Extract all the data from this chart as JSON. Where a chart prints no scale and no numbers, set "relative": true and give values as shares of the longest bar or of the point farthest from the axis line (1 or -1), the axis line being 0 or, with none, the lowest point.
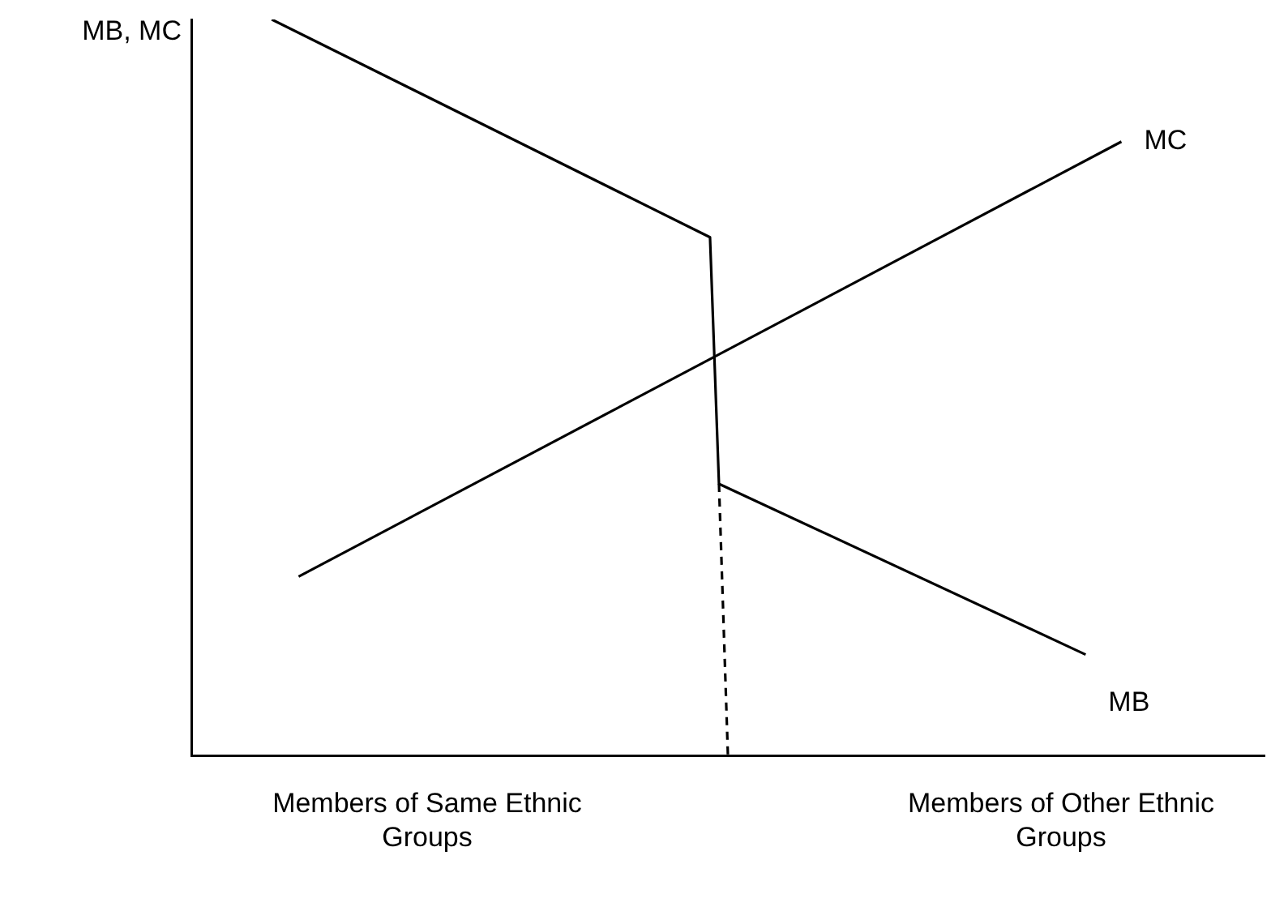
{
  "chart_data": {
    "type": "line",
    "relative": true,
    "ylabel": "MB, MC",
    "grid": false,
    "legend": false,
    "marker": "none",
    "line_style": "solid",
    "categories": [
      null,
      null,
      null,
      null,
      null,
      null,
      null,
      null,
      null,
      null,
      null,
      null,
      null,
      null,
      null,
      null,
      null,
      null,
      null,
      null,
      null,
      null,
      null,
      null,
      null,
      null,
      null,
      null,
      null,
      null,
      null,
      null,
      null,
      null,
      null,
      null,
      null,
      null,
      null,
      null,
      null,
      null,
      null,
      null,
      null,
      null,
      null,
      null,
      null,
      null,
      null,
      null,
      null,
      null,
      null,
      null,
      null,
      null,
      null,
      null,
      null,
      null,
      null,
      null,
      null,
      null,
      null,
      null,
      null,
      null,
      null,
      null,
      null,
      null,
      null,
      null,
      null,
      null,
      null,
      null,
      null,
      null,
      null,
      null,
      null,
      null,
      null,
      null,
      null,
      null,
      null,
      null,
      null,
      null,
      null,
      null,
      null,
      null,
      null,
      null,
      null,
      null,
      null,
      null,
      null,
      null,
      null,
      null,
      null,
      null,
      null,
      null,
      null,
      null,
      null,
      null,
      null,
      null,
      null,
      null,
      null
    ],
    "series": [
      {
        "name": "MB",
        "color": "#000000",
        "values": [
          null,
          null,
          null,
          null,
          null,
          null,
          null,
          null,
          null,
          1,
          null,
          null,
          null,
          null,
          null,
          null,
          null,
          null,
          null,
          null,
          null,
          null,
          null,
          null,
          null,
          null,
          null,
          null,
          null,
          null,
          null,
          null,
          null,
          null,
          null,
          null,
          null,
          null,
          null,
          null,
          null,
          null,
          null,
          null,
          null,
          null,
          null,
          null,
          null,
          null,
          null,
          null,
          null,
          null,
          null,
          null,
          null,
          null,
          0.704,
          0.369,
          null,
          null,
          null,
          null,
          null,
          null,
          null,
          null,
          null,
          null,
          null,
          null,
          null,
          null,
          null,
          null,
          null,
          null,
          null,
          null,
          null,
          null,
          null,
          null,
          null,
          null,
          null,
          null,
          null,
          null,
          null,
          null,
          null,
          null,
          null,
          null,
          null,
          null,
          null,
          null,
          0.137,
          null,
          null,
          null,
          null,
          null,
          null,
          null,
          null,
          null,
          null,
          null,
          null,
          null,
          null,
          null,
          null,
          null,
          null,
          null,
          null
        ]
      },
      {
        "name": "MC",
        "color": "#000000",
        "values": [
          null,
          null,
          null,
          null,
          null,
          null,
          null,
          null,
          null,
          null,
          null,
          null,
          0.243,
          null,
          null,
          null,
          null,
          null,
          null,
          null,
          null,
          null,
          null,
          null,
          null,
          null,
          null,
          null,
          null,
          null,
          null,
          null,
          null,
          null,
          null,
          null,
          null,
          null,
          null,
          null,
          null,
          null,
          null,
          null,
          null,
          null,
          null,
          null,
          null,
          null,
          null,
          null,
          null,
          null,
          null,
          null,
          null,
          null,
          null,
          null,
          null,
          null,
          null,
          null,
          null,
          null,
          null,
          null,
          null,
          null,
          null,
          null,
          null,
          null,
          null,
          null,
          null,
          null,
          null,
          null,
          null,
          null,
          null,
          null,
          null,
          null,
          null,
          null,
          null,
          null,
          null,
          null,
          null,
          null,
          null,
          null,
          null,
          null,
          null,
          null,
          null,
          null,
          null,
          null,
          0.834,
          null,
          null,
          null,
          null,
          null,
          null,
          null,
          null,
          null,
          null,
          null,
          null,
          null,
          null,
          null,
          null
        ]
      },
      {
        "color": "#000000",
        "line_style": "dashed",
        "values": [
          null,
          null,
          null,
          null,
          null,
          null,
          null,
          null,
          null,
          null,
          null,
          null,
          null,
          null,
          null,
          null,
          null,
          null,
          null,
          null,
          null,
          null,
          null,
          null,
          null,
          null,
          null,
          null,
          null,
          null,
          null,
          null,
          null,
          null,
          null,
          null,
          null,
          null,
          null,
          null,
          null,
          null,
          null,
          null,
          null,
          null,
          null,
          null,
          null,
          null,
          null,
          null,
          null,
          null,
          null,
          null,
          null,
          null,
          null,
          0.369,
          0,
          null,
          null,
          null,
          null,
          null,
          null,
          null,
          null,
          null,
          null,
          null,
          null,
          null,
          null,
          null,
          null,
          null,
          null,
          null,
          null,
          null,
          null,
          null,
          null,
          null,
          null,
          null,
          null,
          null,
          null,
          null,
          null,
          null,
          null,
          null,
          null,
          null,
          null,
          null,
          null,
          null,
          null,
          null,
          null,
          null,
          null,
          null,
          null,
          null,
          null,
          null,
          null,
          null,
          null,
          null,
          null,
          null,
          null,
          null,
          null
        ]
      }
    ],
    "annotations": [
      "Members of Same Ethnic Groups",
      "Members of Other Ethnic Groups"
    ]
  }
}
